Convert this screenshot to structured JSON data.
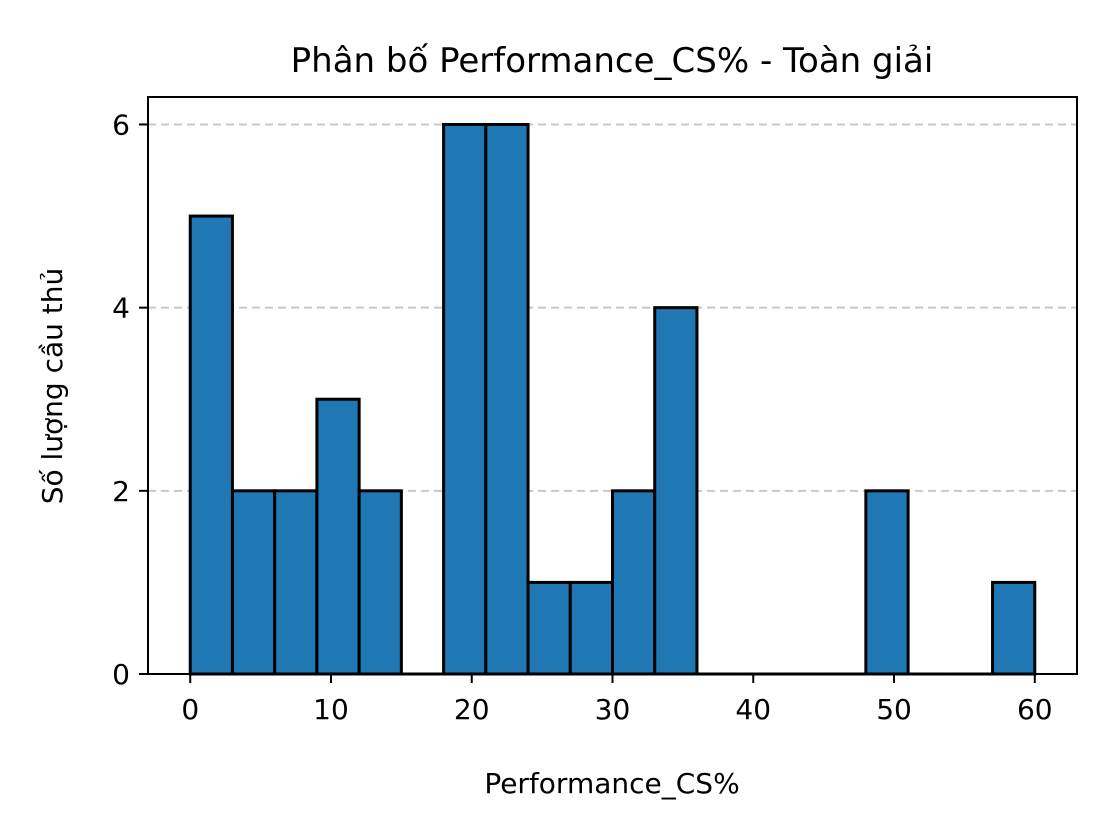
{
  "chart_data": {
    "type": "bar",
    "title": "Phân bố Performance_CS% - Toàn giải",
    "xlabel": "Performance_CS%",
    "ylabel": "Số lượng cầu thủ",
    "xlim": [
      -3,
      63
    ],
    "ylim": [
      0,
      6.3
    ],
    "xticks": [
      0,
      10,
      20,
      30,
      40,
      50,
      60
    ],
    "yticks": [
      0,
      2,
      4,
      6
    ],
    "grid": "y-dashed",
    "bins": [
      {
        "start": 0,
        "end": 3,
        "count": 5
      },
      {
        "start": 3,
        "end": 6,
        "count": 2
      },
      {
        "start": 6,
        "end": 9,
        "count": 2
      },
      {
        "start": 9,
        "end": 12,
        "count": 3
      },
      {
        "start": 12,
        "end": 15,
        "count": 2
      },
      {
        "start": 15,
        "end": 18,
        "count": 0
      },
      {
        "start": 18,
        "end": 21,
        "count": 6
      },
      {
        "start": 21,
        "end": 24,
        "count": 6
      },
      {
        "start": 24,
        "end": 27,
        "count": 1
      },
      {
        "start": 27,
        "end": 30,
        "count": 1
      },
      {
        "start": 30,
        "end": 33,
        "count": 2
      },
      {
        "start": 33,
        "end": 36,
        "count": 4
      },
      {
        "start": 36,
        "end": 39,
        "count": 0
      },
      {
        "start": 39,
        "end": 42,
        "count": 0
      },
      {
        "start": 42,
        "end": 45,
        "count": 0
      },
      {
        "start": 45,
        "end": 48,
        "count": 0
      },
      {
        "start": 48,
        "end": 51,
        "count": 2
      },
      {
        "start": 51,
        "end": 54,
        "count": 0
      },
      {
        "start": 54,
        "end": 57,
        "count": 0
      },
      {
        "start": 57,
        "end": 60,
        "count": 1
      }
    ],
    "colors": {
      "bar": "#1f77b4",
      "edge": "#000000",
      "grid": "#c8c8c8"
    }
  }
}
